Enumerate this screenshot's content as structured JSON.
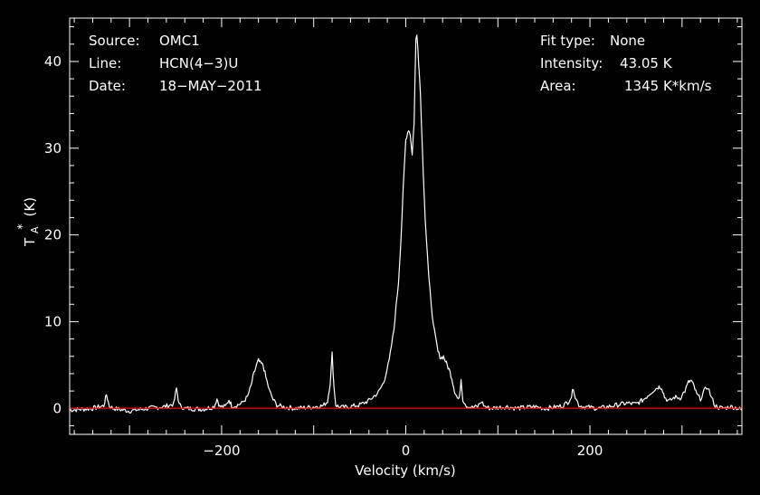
{
  "chart_data": {
    "type": "line",
    "title": "",
    "xlabel": "Velocity (km/s)",
    "ylabel": "T",
    "ylabel_sup": "*",
    "ylabel_sub": "A",
    "ylabel_unit": "(K)",
    "xlim": [
      -365,
      365
    ],
    "ylim": [
      -3,
      45
    ],
    "x_ticks": [
      -200,
      0,
      200
    ],
    "x_tick_labels": [
      "−200",
      "0",
      "200"
    ],
    "y_ticks": [
      0,
      10,
      20,
      30,
      40
    ],
    "y_tick_labels": [
      "0",
      "10",
      "20",
      "30",
      "40"
    ],
    "grid": false,
    "colors": {
      "background": "#000000",
      "axes": "#ffffff",
      "spectrum": "#ffffff",
      "baseline": "#ff0000"
    },
    "baseline_value": 0,
    "info_left": [
      {
        "key": "Source:",
        "value": "OMC1"
      },
      {
        "key": "Line:",
        "value": "HCN(4−3)U"
      },
      {
        "key": "Date:",
        "value": "18−MAY−2011"
      }
    ],
    "info_right": [
      {
        "key": "Fit type:",
        "value": "None"
      },
      {
        "key": "Intensity:",
        "value": "43.05 K"
      },
      {
        "key": "Area:",
        "value": "1345 K*km/s"
      }
    ],
    "series": [
      {
        "x": [
          -365,
          -340,
          -328,
          -325,
          -322,
          -318,
          -300,
          -280,
          -262,
          -252,
          -249,
          -246,
          -240,
          -220,
          -212,
          -208,
          -205,
          -202,
          -196,
          -192,
          -189,
          -185,
          -178,
          -172,
          -168,
          -165,
          -162,
          -160,
          -158,
          -155,
          -152,
          -148,
          -144,
          -140,
          -135,
          -128,
          -118,
          -108,
          -98,
          -90,
          -85,
          -82,
          -80,
          -78,
          -76,
          -73,
          -68,
          -60,
          -50,
          -40,
          -30,
          -24,
          -18,
          -13,
          -8,
          -5,
          -2,
          0,
          3,
          5,
          7,
          9,
          10,
          11,
          12,
          13,
          14,
          16,
          18,
          21,
          25,
          30,
          35,
          38,
          41,
          44,
          47,
          50,
          53,
          56,
          58,
          60,
          62,
          66,
          72,
          78,
          82,
          86,
          92,
          100,
          110,
          120,
          130,
          140,
          150,
          160,
          170,
          176,
          180,
          182,
          184,
          188,
          192,
          200,
          210,
          220,
          230,
          240,
          250,
          258,
          264,
          268,
          272,
          275,
          278,
          281,
          286,
          292,
          298,
          303,
          307,
          310,
          313,
          316,
          320,
          324,
          328,
          332,
          336,
          340,
          346,
          352,
          358,
          365
        ],
        "y": [
          -0.2,
          0,
          0.3,
          1.6,
          0.3,
          0,
          -0.3,
          0,
          0.2,
          0.5,
          2.3,
          0.4,
          0,
          -0.1,
          0.1,
          0.2,
          1.1,
          0.2,
          0.2,
          1.0,
          0.3,
          0.3,
          0.6,
          1.3,
          2.6,
          4.0,
          5.0,
          5.5,
          5.2,
          5.0,
          3.6,
          2.0,
          1.0,
          0.4,
          0.2,
          0.1,
          0,
          0.1,
          0.2,
          0.3,
          0.8,
          3.0,
          6.3,
          2.5,
          0.4,
          0.2,
          0.1,
          0.2,
          0.4,
          0.9,
          1.8,
          3.0,
          5.5,
          9.0,
          14.5,
          20.0,
          27.0,
          31.0,
          32.2,
          31.5,
          29.2,
          33.0,
          38.0,
          42.5,
          43.05,
          42.0,
          40.0,
          36.0,
          30.0,
          22.0,
          15.0,
          9.5,
          6.5,
          5.8,
          6.0,
          5.2,
          4.5,
          3.5,
          2.0,
          1.2,
          1.0,
          3.4,
          1.0,
          0.3,
          0.1,
          0.2,
          0.8,
          0.2,
          0,
          0.1,
          0.2,
          0,
          0.1,
          0.2,
          0,
          0.1,
          0.3,
          0.7,
          1.4,
          2.4,
          1.3,
          0.4,
          0.2,
          0.1,
          0,
          0.2,
          0.4,
          0.6,
          0.5,
          1.0,
          1.6,
          2.0,
          2.3,
          2.5,
          2.4,
          1.3,
          0.8,
          1.3,
          1.2,
          2.0,
          3.0,
          3.2,
          2.5,
          1.6,
          1.1,
          2.0,
          2.5,
          1.2,
          0.3,
          0.1,
          0,
          0.2,
          0.1,
          -0.2
        ]
      }
    ]
  }
}
